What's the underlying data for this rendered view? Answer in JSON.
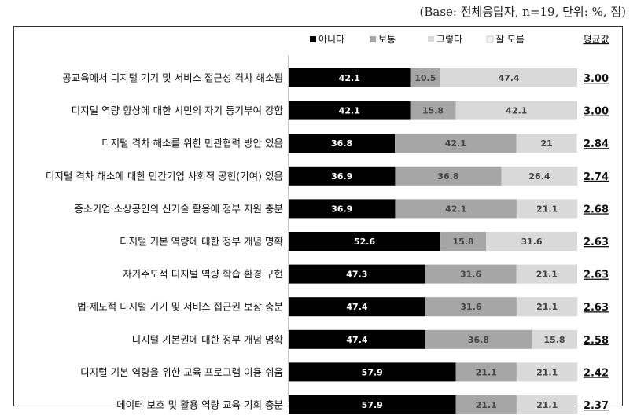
{
  "header": {
    "base_note": "(Base: 전체응답자, n=19, 단위: %, 점)"
  },
  "colors": {
    "아니다": "#000000",
    "보통": "#a6a6a6",
    "그렇다": "#d9d9d9",
    "잘 모름": "#f2f2f2"
  },
  "chart_data": {
    "type": "bar",
    "orientation": "horizontal",
    "stacked": true,
    "xlim": [
      0,
      100
    ],
    "legend_position": "top",
    "categories": [
      "공교육에서 디지털 기기 및 서비스 접근성 격차 해소됨",
      "디지털 역량 향상에 대한 시민의 자기 동기부여 강함",
      "디지털 격차 해소를 위한 민관협력 방안 있음",
      "디지털 격차 해소에 대한 민간기업 사회적 공헌(기여) 있음",
      "중소기업·소상공인의 신기술 활용에 정부 지원 충분",
      "디지털 기본 역량에 대한 정부 개념 명확",
      "자기주도적 디지털 역량 학습 환경 구현",
      "법·제도적 디지털 기기 및 서비스 접근권 보장 충분",
      "디지털 기본권에 대한 정부 개념 명확",
      "디지털 기본 역량을 위한 교육 프로그램 이용 쉬움",
      "데이터 보호 및 활용 역량 교육 기회 충분"
    ],
    "series": [
      {
        "name": "아니다",
        "values": [
          42.1,
          42.1,
          36.8,
          36.9,
          36.9,
          52.6,
          47.3,
          47.4,
          47.4,
          57.9,
          57.9
        ],
        "labels": [
          "42.1",
          "42.1",
          "36.8",
          "36.9",
          "36.9",
          "52.6",
          "47.3",
          "47.4",
          "47.4",
          "57.9",
          "57.9"
        ]
      },
      {
        "name": "보통",
        "values": [
          10.5,
          15.8,
          42.1,
          36.8,
          42.1,
          15.8,
          31.6,
          31.6,
          36.8,
          21.1,
          21.1
        ],
        "labels": [
          "10.5",
          "15.8",
          "42.1",
          "36.8",
          "42.1",
          "15.8",
          "31.6",
          "31.6",
          "36.8",
          "21.1",
          "21.1"
        ]
      },
      {
        "name": "그렇다",
        "values": [
          47.4,
          42.1,
          21,
          26.4,
          21.1,
          31.6,
          21.1,
          21.1,
          15.8,
          21.1,
          21.1
        ],
        "labels": [
          "47.4",
          "42.1",
          "21",
          "26.4",
          "21.1",
          "31.6",
          "21.1",
          "21.1",
          "15.8",
          "21.1",
          "21.1"
        ]
      },
      {
        "name": "잘 모름",
        "values": [
          0,
          0,
          0,
          0,
          0,
          0,
          0,
          0,
          0,
          0,
          0
        ],
        "labels": [
          "",
          "",
          "",
          "",
          "",
          "",
          "",
          "",
          "",
          "",
          ""
        ]
      }
    ],
    "average_header": "평균값",
    "averages": [
      "3.00",
      "3.00",
      "2.84",
      "2.74",
      "2.68",
      "2.63",
      "2.63",
      "2.63",
      "2.58",
      "2.42",
      "2.37"
    ]
  }
}
